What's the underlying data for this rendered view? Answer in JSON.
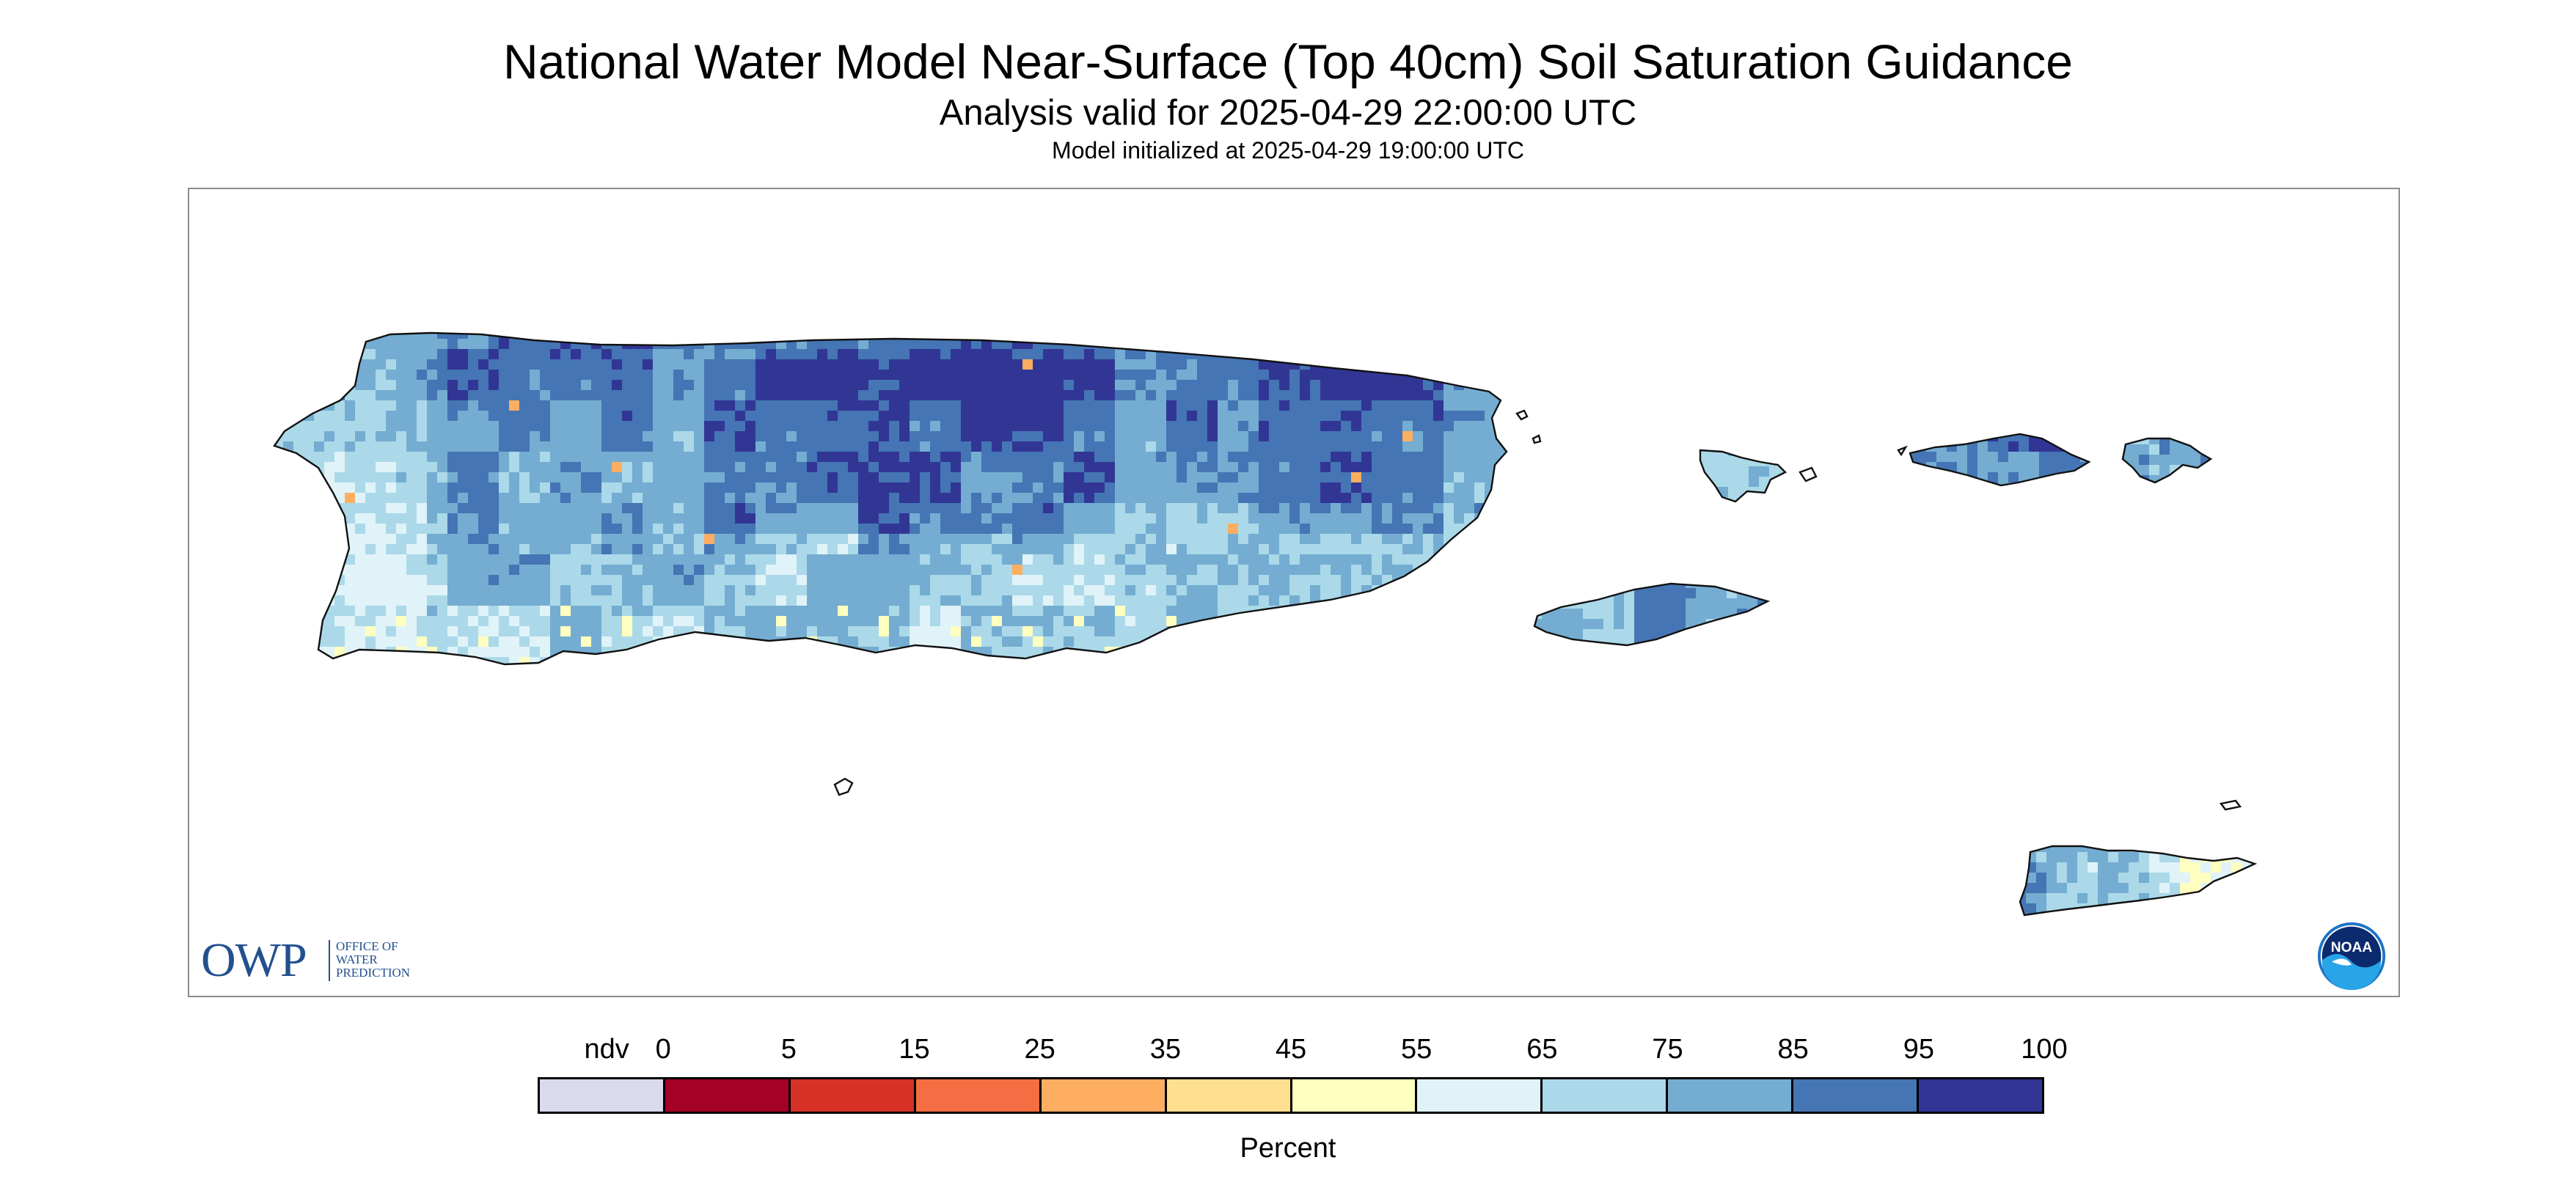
{
  "title": "National Water Model Near-Surface (Top 40cm) Soil Saturation Guidance",
  "subtitle": "Analysis valid for 2025-04-29 22:00:00 UTC",
  "init_line": "Model initialized at 2025-04-29 19:00:00 UTC",
  "logos": {
    "owp": {
      "letters": "OWP",
      "lines": [
        "OFFICE OF",
        "WATER",
        "PREDICTION"
      ]
    },
    "noaa": {
      "text": "NOAA",
      "colors": {
        "ring": "#1d74c6",
        "inner": "#0c2a6e"
      }
    }
  },
  "legend": {
    "categories": [
      {
        "label": "ndv",
        "color": "#dadaed"
      },
      {
        "label": "0",
        "color": "#a50026"
      },
      {
        "label": "5",
        "color": "#d73027"
      },
      {
        "label": "15",
        "color": "#f46d43"
      },
      {
        "label": "25",
        "color": "#fdae61"
      },
      {
        "label": "35",
        "color": "#fee090"
      },
      {
        "label": "45",
        "color": "#ffffbf"
      },
      {
        "label": "55",
        "color": "#e0f3f8"
      },
      {
        "label": "65",
        "color": "#abd9e9"
      },
      {
        "label": "75",
        "color": "#74add1"
      },
      {
        "label": "85",
        "color": "#4575b4"
      },
      {
        "label": "95",
        "color": "#313695"
      }
    ],
    "end_label": "100",
    "unit": "Percent"
  },
  "map": {
    "region": "Puerto Rico and U.S. Virgin Islands",
    "colors": {
      "coast": "#111111",
      "land_base": "#74add1",
      "wet": "#4575b4",
      "saturated": "#313695",
      "moist": "#abd9e9",
      "light": "#e0f3f8",
      "dry": "#ffffbf",
      "very_dry": "#fdae61"
    }
  }
}
